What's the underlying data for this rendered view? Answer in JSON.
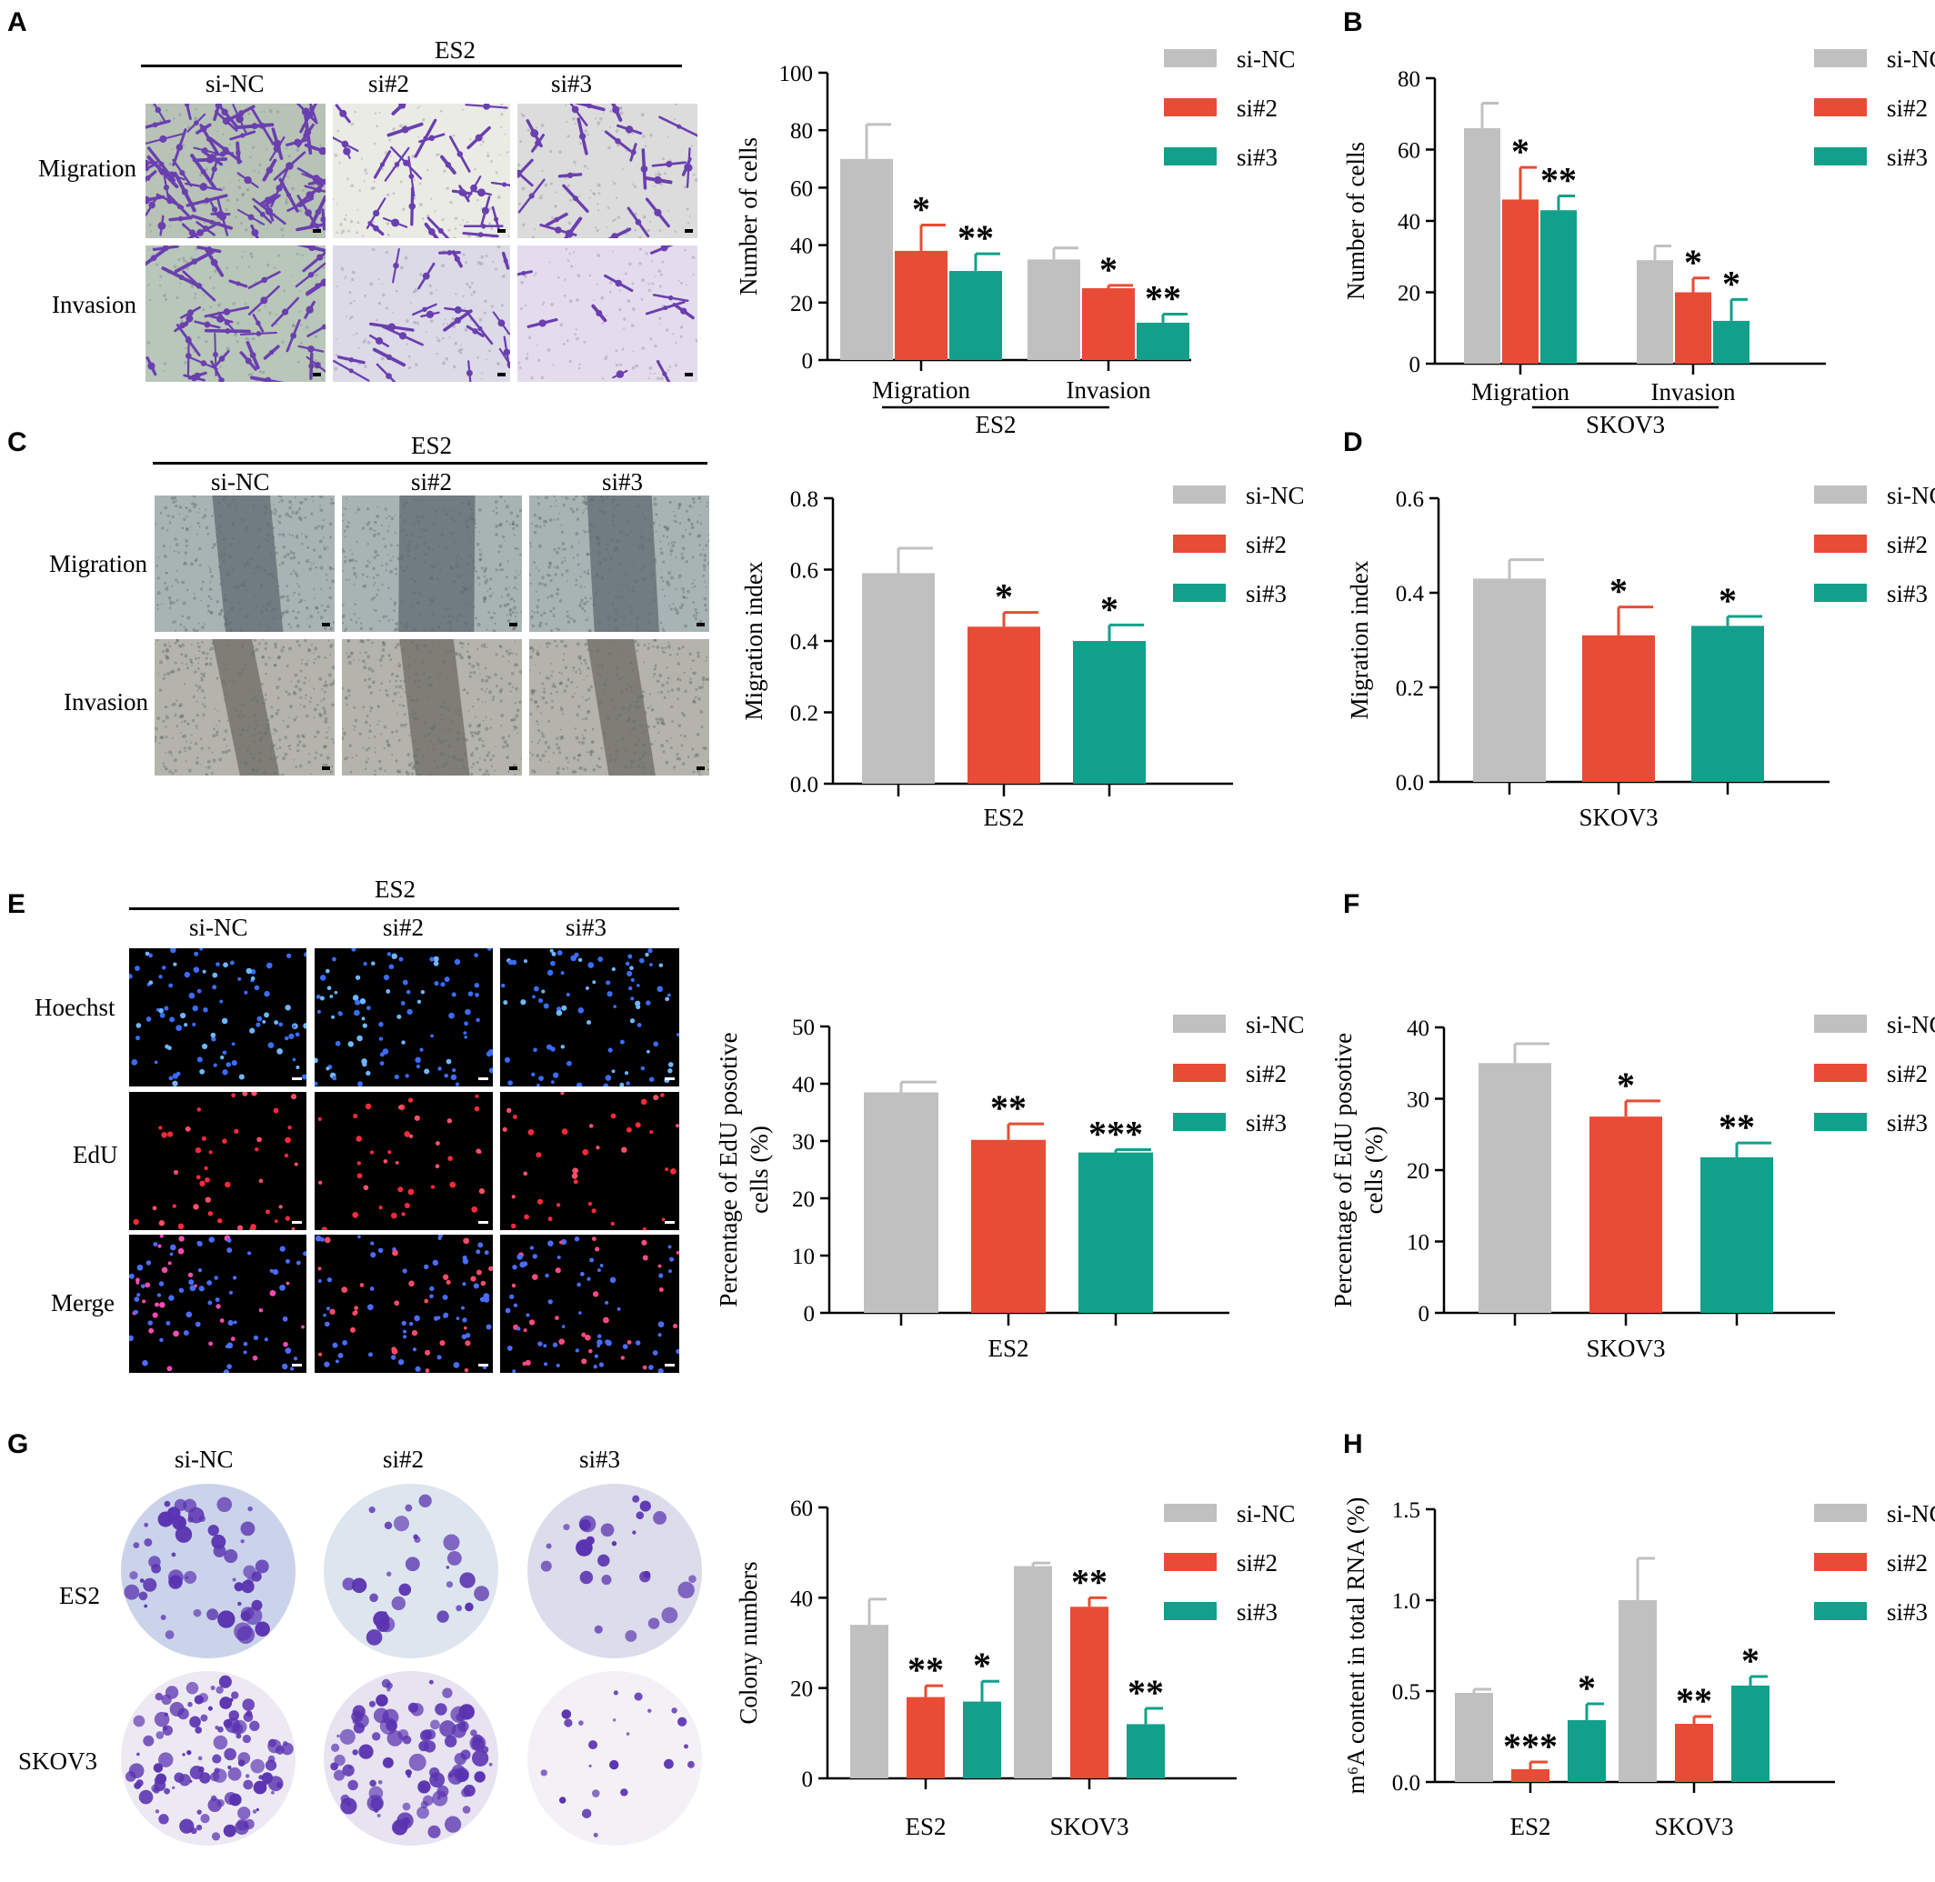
{
  "colors": {
    "si_NC": "#c0c0c0",
    "si2": "#e84c36",
    "si3": "#12a08a",
    "transwell_stain": "#6a3fae",
    "edu_red": "#ff2a3c",
    "hoechst_blue": "#3a6cff",
    "colony": "#5a33b0"
  },
  "panels": {
    "A": {
      "letter": "A",
      "group": "ES2",
      "columns": [
        "si-NC",
        "si#2",
        "si#3"
      ],
      "rows": [
        "Migration",
        "Invasion"
      ]
    },
    "C": {
      "letter": "C",
      "group": "ES2",
      "columns": [
        "si-NC",
        "si#2",
        "si#3"
      ],
      "rows": [
        "Migration",
        "Invasion"
      ]
    },
    "E": {
      "letter": "E",
      "group": "ES2",
      "columns": [
        "si-NC",
        "si#2",
        "si#3"
      ],
      "rows": [
        "Hoechst",
        "EdU",
        "Merge"
      ]
    },
    "G": {
      "letter": "G",
      "columns": [
        "si-NC",
        "si#2",
        "si#3"
      ],
      "rows": [
        "ES2",
        "SKOV3"
      ]
    },
    "B": {
      "letter": "B"
    },
    "D": {
      "letter": "D"
    },
    "F": {
      "letter": "F"
    },
    "H": {
      "letter": "H"
    }
  },
  "chart_data": [
    {
      "id": "A",
      "type": "bar",
      "ylabel": "Number of cells",
      "ylim": [
        0,
        100
      ],
      "ticks": [
        0,
        20,
        40,
        60,
        80,
        100
      ],
      "categories": [
        "Migration",
        "Invasion"
      ],
      "group_label": "ES2",
      "series": [
        {
          "name": "si-NC",
          "values": [
            70,
            35
          ],
          "errors": [
            12,
            4
          ],
          "sig": [
            "",
            ""
          ]
        },
        {
          "name": "si#2",
          "values": [
            38,
            25
          ],
          "errors": [
            9,
            1
          ],
          "sig": [
            "*",
            "*"
          ]
        },
        {
          "name": "si#3",
          "values": [
            31,
            13
          ],
          "errors": [
            6,
            3
          ],
          "sig": [
            "**",
            "**"
          ]
        }
      ],
      "legend": "top-right"
    },
    {
      "id": "B",
      "type": "bar",
      "ylabel": "Number of cells",
      "ylim": [
        0,
        80
      ],
      "ticks": [
        0,
        20,
        40,
        60,
        80
      ],
      "categories": [
        "Migration",
        "Invasion"
      ],
      "group_label": "SKOV3",
      "series": [
        {
          "name": "si-NC",
          "values": [
            66,
            29
          ],
          "errors": [
            7,
            4
          ],
          "sig": [
            "",
            ""
          ]
        },
        {
          "name": "si#2",
          "values": [
            46,
            20
          ],
          "errors": [
            9,
            4
          ],
          "sig": [
            "*",
            "*"
          ]
        },
        {
          "name": "si#3",
          "values": [
            43,
            12
          ],
          "errors": [
            4,
            6
          ],
          "sig": [
            "**",
            "*"
          ]
        }
      ],
      "legend": "top-right"
    },
    {
      "id": "C",
      "type": "bar",
      "ylabel": "Migration index",
      "ylim": [
        0,
        0.8
      ],
      "ticks": [
        "0.0",
        "0.2",
        "0.4",
        "0.6",
        "0.8"
      ],
      "categories": [
        "ES2"
      ],
      "series": [
        {
          "name": "si-NC",
          "values": [
            0.59
          ],
          "errors": [
            0.07
          ],
          "sig": [
            ""
          ]
        },
        {
          "name": "si#2",
          "values": [
            0.44
          ],
          "errors": [
            0.04
          ],
          "sig": [
            "*"
          ]
        },
        {
          "name": "si#3",
          "values": [
            0.4
          ],
          "errors": [
            0.045
          ],
          "sig": [
            "*"
          ]
        }
      ],
      "legend": "top-right"
    },
    {
      "id": "D",
      "type": "bar",
      "ylabel": "Migration index",
      "ylim": [
        0,
        0.6
      ],
      "ticks": [
        "0.0",
        "0.2",
        "0.4",
        "0.6"
      ],
      "categories": [
        "SKOV3"
      ],
      "series": [
        {
          "name": "si-NC",
          "values": [
            0.43
          ],
          "errors": [
            0.04
          ],
          "sig": [
            ""
          ]
        },
        {
          "name": "si#2",
          "values": [
            0.31
          ],
          "errors": [
            0.06
          ],
          "sig": [
            "*"
          ]
        },
        {
          "name": "si#3",
          "values": [
            0.33
          ],
          "errors": [
            0.02
          ],
          "sig": [
            "*"
          ]
        }
      ],
      "legend": "top-right"
    },
    {
      "id": "E",
      "type": "bar",
      "ylabel": [
        "Percentage of EdU posotive",
        "cells (%)"
      ],
      "ylim": [
        0,
        50
      ],
      "ticks": [
        0,
        10,
        20,
        30,
        40,
        50
      ],
      "categories": [
        "ES2"
      ],
      "series": [
        {
          "name": "si-NC",
          "values": [
            38.5
          ],
          "errors": [
            1.8
          ],
          "sig": [
            ""
          ]
        },
        {
          "name": "si#2",
          "values": [
            30.2
          ],
          "errors": [
            2.8
          ],
          "sig": [
            "**"
          ]
        },
        {
          "name": "si#3",
          "values": [
            28
          ],
          "errors": [
            0.5
          ],
          "sig": [
            "***"
          ]
        }
      ],
      "legend": "top-right"
    },
    {
      "id": "F",
      "type": "bar",
      "ylabel": [
        "Percentage of EdU posotive",
        "cells (%)"
      ],
      "ylim": [
        0,
        40
      ],
      "ticks": [
        0,
        10,
        20,
        30,
        40
      ],
      "categories": [
        "SKOV3"
      ],
      "series": [
        {
          "name": "si-NC",
          "values": [
            35
          ],
          "errors": [
            2.7
          ],
          "sig": [
            ""
          ]
        },
        {
          "name": "si#2",
          "values": [
            27.5
          ],
          "errors": [
            2.2
          ],
          "sig": [
            "*"
          ]
        },
        {
          "name": "si#3",
          "values": [
            21.8
          ],
          "errors": [
            2
          ],
          "sig": [
            "**"
          ]
        }
      ],
      "legend": "top-right"
    },
    {
      "id": "G",
      "type": "bar",
      "ylabel": "Colony numbers",
      "ylim": [
        0,
        60
      ],
      "ticks": [
        0,
        20,
        40,
        60
      ],
      "categories": [
        "ES2",
        "SKOV3"
      ],
      "series": [
        {
          "name": "si-NC",
          "values": [
            34,
            47
          ],
          "errors": [
            5.7,
            0.7
          ],
          "sig": [
            "",
            ""
          ]
        },
        {
          "name": "si#2",
          "values": [
            18,
            38
          ],
          "errors": [
            2.5,
            2
          ],
          "sig": [
            "**",
            "**"
          ]
        },
        {
          "name": "si#3",
          "values": [
            17,
            12
          ],
          "errors": [
            4.5,
            3.5
          ],
          "sig": [
            "*",
            "**"
          ]
        }
      ],
      "legend": "top-right"
    },
    {
      "id": "H",
      "type": "bar",
      "ylabel": "m⁶A  content in total RNA (%)",
      "ylim": [
        0,
        1.5
      ],
      "ticks": [
        "0.0",
        "0.5",
        "1.0",
        "1.5"
      ],
      "categories": [
        "ES2",
        "SKOV3"
      ],
      "series": [
        {
          "name": "si-NC",
          "values": [
            0.49,
            1.0
          ],
          "errors": [
            0.02,
            0.23
          ],
          "sig": [
            "",
            ""
          ]
        },
        {
          "name": "si#2",
          "values": [
            0.07,
            0.32
          ],
          "errors": [
            0.04,
            0.04
          ],
          "sig": [
            "***",
            "**"
          ]
        },
        {
          "name": "si#3",
          "values": [
            0.34,
            0.53
          ],
          "errors": [
            0.09,
            0.05
          ],
          "sig": [
            "*",
            "*"
          ]
        }
      ],
      "legend": "top-right"
    }
  ]
}
